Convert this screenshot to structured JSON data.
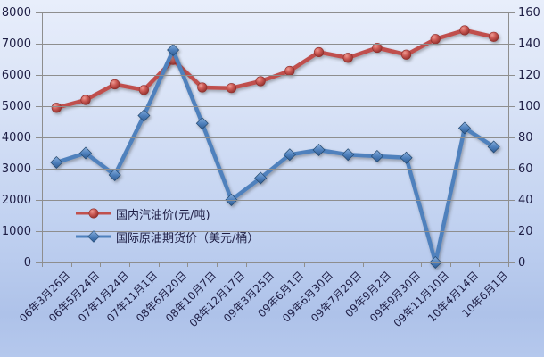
{
  "chart_data": {
    "type": "line",
    "categories": [
      "06年3月26日",
      "06年5月24日",
      "07年1月24日",
      "07年11月1日",
      "08年6月20日",
      "08年10月7日",
      "08年12月17日",
      "09年3月25日",
      "09年6月1日",
      "09年6月30日",
      "09年7月29日",
      "09年9月2日",
      "09年9月30日",
      "09年11月10日",
      "10年4月14日",
      "10年6月1日"
    ],
    "series": [
      {
        "name": "国内汽油价(元/吨)",
        "axis": "left",
        "marker": "circle",
        "color": "#c0504d",
        "values": [
          4950,
          5200,
          5700,
          5520,
          6480,
          5600,
          5580,
          5800,
          6130,
          6730,
          6550,
          6870,
          6650,
          7150,
          7430,
          7220
        ]
      },
      {
        "name": "国际原油期货价（美元/桶）",
        "axis": "right",
        "marker": "diamond",
        "color": "#4f81bd",
        "values": [
          64,
          70,
          56,
          94,
          136,
          89,
          40,
          54,
          69,
          72,
          69,
          68,
          67,
          0,
          86,
          74
        ]
      }
    ],
    "left_axis": {
      "min": 0,
      "max": 8000,
      "step": 1000,
      "tick_labels": [
        "0",
        "1000",
        "2000",
        "3000",
        "4000",
        "5000",
        "6000",
        "7000",
        "8000"
      ]
    },
    "right_axis": {
      "min": 0,
      "max": 160,
      "step": 20,
      "tick_labels": [
        "0",
        "20",
        "40",
        "60",
        "80",
        "100",
        "120",
        "140",
        "160"
      ]
    },
    "grid": true,
    "legend_position": "inside-left-bottom",
    "colors": {
      "grid": "#8e8e8e",
      "text": "#1e1e45",
      "red_line": "#c0504d",
      "blue_line": "#4f81bd"
    }
  }
}
